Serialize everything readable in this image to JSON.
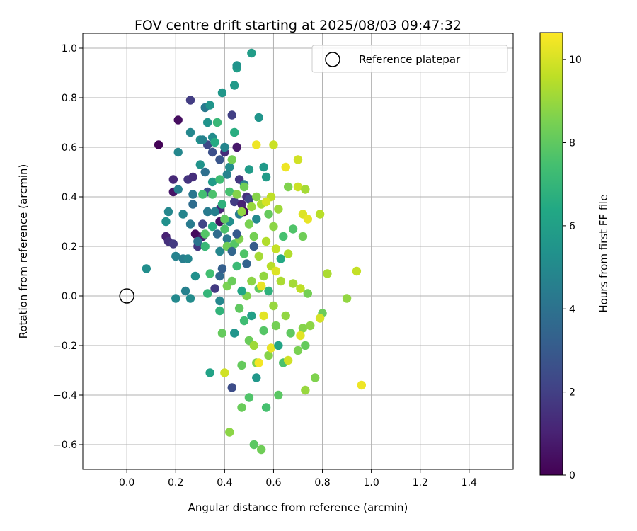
{
  "chart_data": {
    "type": "scatter",
    "title": "FOV centre drift starting at 2025/08/03 09:47:32",
    "xlabel": "Angular distance from reference (arcmin)",
    "ylabel": "Rotation from reference (arcmin)",
    "xlim": [
      -0.18,
      1.58
    ],
    "ylim": [
      -0.7,
      1.06
    ],
    "xticks": [
      0.0,
      0.2,
      0.4,
      0.6,
      0.8,
      1.0,
      1.2,
      1.4
    ],
    "xtick_labels": [
      "0.0",
      "0.2",
      "0.4",
      "0.6",
      "0.8",
      "1.0",
      "1.2",
      "1.4"
    ],
    "yticks": [
      -0.6,
      -0.4,
      -0.2,
      0.0,
      0.2,
      0.4,
      0.6,
      0.8,
      1.0
    ],
    "ytick_labels": [
      "−0.6",
      "−0.4",
      "−0.2",
      "0.0",
      "0.2",
      "0.4",
      "0.6",
      "0.8",
      "1.0"
    ],
    "grid": true,
    "legend": {
      "placement": "top-right",
      "entries": [
        "Reference platepar"
      ]
    },
    "reference_point": {
      "x": 0.0,
      "y": 0.0,
      "marker": "open-circle"
    },
    "colorbar": {
      "label": "Hours from first FF file",
      "colormap": "viridis",
      "range": [
        0,
        10.65
      ],
      "ticks": [
        0,
        2,
        4,
        6,
        8,
        10
      ],
      "tick_labels": [
        "0",
        "2",
        "4",
        "6",
        "8",
        "10"
      ]
    },
    "points": [
      {
        "x": 0.13,
        "y": 0.61,
        "h": 0.1
      },
      {
        "x": 0.16,
        "y": 0.24,
        "h": 1.0
      },
      {
        "x": 0.17,
        "y": 0.22,
        "h": 1.5
      },
      {
        "x": 0.19,
        "y": 0.21,
        "h": 1.8
      },
      {
        "x": 0.19,
        "y": 0.42,
        "h": 0.6
      },
      {
        "x": 0.19,
        "y": 0.47,
        "h": 1.2
      },
      {
        "x": 0.21,
        "y": 0.71,
        "h": 0.4
      },
      {
        "x": 0.25,
        "y": 0.47,
        "h": 1.6
      },
      {
        "x": 0.26,
        "y": 0.79,
        "h": 1.9
      },
      {
        "x": 0.27,
        "y": 0.48,
        "h": 1.4
      },
      {
        "x": 0.28,
        "y": 0.25,
        "h": 0.3
      },
      {
        "x": 0.29,
        "y": 0.2,
        "h": 1.7
      },
      {
        "x": 0.31,
        "y": 0.24,
        "h": 0.8
      },
      {
        "x": 0.31,
        "y": 0.29,
        "h": 2.2
      },
      {
        "x": 0.33,
        "y": 0.61,
        "h": 2.3
      },
      {
        "x": 0.33,
        "y": 0.42,
        "h": 2.5
      },
      {
        "x": 0.35,
        "y": 0.58,
        "h": 2.6
      },
      {
        "x": 0.38,
        "y": 0.3,
        "h": 0.5
      },
      {
        "x": 0.38,
        "y": 0.35,
        "h": 1.1
      },
      {
        "x": 0.38,
        "y": 0.55,
        "h": 2.8
      },
      {
        "x": 0.4,
        "y": 0.58,
        "h": 1.3
      },
      {
        "x": 0.43,
        "y": 0.73,
        "h": 2.0
      },
      {
        "x": 0.44,
        "y": 0.38,
        "h": 1.9
      },
      {
        "x": 0.45,
        "y": 0.6,
        "h": 0.7
      },
      {
        "x": 0.46,
        "y": 0.47,
        "h": 1.7
      },
      {
        "x": 0.47,
        "y": 0.37,
        "h": 1.0
      },
      {
        "x": 0.48,
        "y": 0.34,
        "h": 0.2
      },
      {
        "x": 0.49,
        "y": 0.4,
        "h": 1.5
      },
      {
        "x": 0.5,
        "y": 0.39,
        "h": 2.2
      },
      {
        "x": 0.36,
        "y": 0.03,
        "h": 1.8
      },
      {
        "x": 0.43,
        "y": -0.37,
        "h": 2.5
      },
      {
        "x": 0.08,
        "y": 0.11,
        "h": 5.2
      },
      {
        "x": 0.16,
        "y": 0.3,
        "h": 5.3
      },
      {
        "x": 0.17,
        "y": 0.34,
        "h": 4.9
      },
      {
        "x": 0.2,
        "y": 0.16,
        "h": 4.7
      },
      {
        "x": 0.2,
        "y": -0.01,
        "h": 5.0
      },
      {
        "x": 0.21,
        "y": 0.58,
        "h": 4.9
      },
      {
        "x": 0.21,
        "y": 0.43,
        "h": 4.6
      },
      {
        "x": 0.23,
        "y": 0.33,
        "h": 4.8
      },
      {
        "x": 0.23,
        "y": 0.15,
        "h": 4.5
      },
      {
        "x": 0.24,
        "y": 0.02,
        "h": 4.6
      },
      {
        "x": 0.25,
        "y": 0.15,
        "h": 4.8
      },
      {
        "x": 0.26,
        "y": 0.29,
        "h": 4.4
      },
      {
        "x": 0.26,
        "y": 0.66,
        "h": 4.9
      },
      {
        "x": 0.26,
        "y": -0.01,
        "h": 5.1
      },
      {
        "x": 0.27,
        "y": 0.37,
        "h": 3.8
      },
      {
        "x": 0.27,
        "y": 0.41,
        "h": 4.2
      },
      {
        "x": 0.28,
        "y": 0.08,
        "h": 5.3
      },
      {
        "x": 0.29,
        "y": 0.22,
        "h": 4.1
      },
      {
        "x": 0.3,
        "y": 0.53,
        "h": 5.4
      },
      {
        "x": 0.3,
        "y": 0.63,
        "h": 5.3
      },
      {
        "x": 0.31,
        "y": 0.63,
        "h": 4.7
      },
      {
        "x": 0.32,
        "y": 0.76,
        "h": 4.3
      },
      {
        "x": 0.32,
        "y": 0.5,
        "h": 3.9
      },
      {
        "x": 0.33,
        "y": 0.7,
        "h": 5.4
      },
      {
        "x": 0.33,
        "y": 0.34,
        "h": 4.4
      },
      {
        "x": 0.34,
        "y": 0.77,
        "h": 5.5
      },
      {
        "x": 0.35,
        "y": 0.64,
        "h": 5.1
      },
      {
        "x": 0.35,
        "y": 0.46,
        "h": 5.8
      },
      {
        "x": 0.36,
        "y": 0.34,
        "h": 4.6
      },
      {
        "x": 0.37,
        "y": 0.25,
        "h": 3.7
      },
      {
        "x": 0.38,
        "y": 0.18,
        "h": 4.9
      },
      {
        "x": 0.38,
        "y": 0.08,
        "h": 3.6
      },
      {
        "x": 0.39,
        "y": 0.82,
        "h": 5.6
      },
      {
        "x": 0.4,
        "y": 0.6,
        "h": 4.8
      },
      {
        "x": 0.41,
        "y": 0.49,
        "h": 4.7
      },
      {
        "x": 0.41,
        "y": 0.23,
        "h": 4.3
      },
      {
        "x": 0.42,
        "y": 0.3,
        "h": 5.2
      },
      {
        "x": 0.42,
        "y": 0.52,
        "h": 5.1
      },
      {
        "x": 0.44,
        "y": 0.85,
        "h": 5.7
      },
      {
        "x": 0.45,
        "y": 0.92,
        "h": 5.9
      },
      {
        "x": 0.45,
        "y": 0.93,
        "h": 5.4
      },
      {
        "x": 0.46,
        "y": 0.33,
        "h": 4.5
      },
      {
        "x": 0.48,
        "y": 0.45,
        "h": 4.4
      },
      {
        "x": 0.5,
        "y": 0.51,
        "h": 5.8
      },
      {
        "x": 0.51,
        "y": 0.98,
        "h": 5.9
      },
      {
        "x": 0.53,
        "y": 0.31,
        "h": 5.0
      },
      {
        "x": 0.54,
        "y": 0.72,
        "h": 5.5
      },
      {
        "x": 0.56,
        "y": 0.52,
        "h": 5.7
      },
      {
        "x": 0.57,
        "y": 0.48,
        "h": 5.8
      },
      {
        "x": 0.38,
        "y": -0.02,
        "h": 4.9
      },
      {
        "x": 0.44,
        "y": -0.15,
        "h": 5.5
      },
      {
        "x": 0.53,
        "y": -0.33,
        "h": 5.6
      },
      {
        "x": 0.34,
        "y": -0.31,
        "h": 6.1
      },
      {
        "x": 0.31,
        "y": 0.41,
        "h": 7.4
      },
      {
        "x": 0.32,
        "y": 0.25,
        "h": 7.8
      },
      {
        "x": 0.32,
        "y": 0.2,
        "h": 7.1
      },
      {
        "x": 0.33,
        "y": 0.01,
        "h": 7.0
      },
      {
        "x": 0.34,
        "y": 0.09,
        "h": 7.4
      },
      {
        "x": 0.35,
        "y": 0.41,
        "h": 7.6
      },
      {
        "x": 0.35,
        "y": 0.28,
        "h": 6.6
      },
      {
        "x": 0.36,
        "y": 0.62,
        "h": 6.5
      },
      {
        "x": 0.37,
        "y": 0.7,
        "h": 7.1
      },
      {
        "x": 0.38,
        "y": 0.47,
        "h": 7.3
      },
      {
        "x": 0.38,
        "y": -0.06,
        "h": 6.9
      },
      {
        "x": 0.39,
        "y": 0.37,
        "h": 6.8
      },
      {
        "x": 0.39,
        "y": -0.15,
        "h": 8.1
      },
      {
        "x": 0.4,
        "y": 0.31,
        "h": 8.0
      },
      {
        "x": 0.4,
        "y": 0.27,
        "h": 7.6
      },
      {
        "x": 0.41,
        "y": 0.2,
        "h": 8.3
      },
      {
        "x": 0.41,
        "y": 0.04,
        "h": 8.5
      },
      {
        "x": 0.42,
        "y": 0.42,
        "h": 7.5
      },
      {
        "x": 0.43,
        "y": 0.06,
        "h": 8.2
      },
      {
        "x": 0.43,
        "y": 0.55,
        "h": 8.4
      },
      {
        "x": 0.44,
        "y": 0.21,
        "h": 7.8
      },
      {
        "x": 0.44,
        "y": 0.66,
        "h": 6.6
      },
      {
        "x": 0.45,
        "y": 0.41,
        "h": 8.7
      },
      {
        "x": 0.45,
        "y": 0.12,
        "h": 7.2
      },
      {
        "x": 0.46,
        "y": -0.05,
        "h": 8.0
      },
      {
        "x": 0.46,
        "y": 0.23,
        "h": 8.6
      },
      {
        "x": 0.47,
        "y": 0.34,
        "h": 8.9
      },
      {
        "x": 0.47,
        "y": -0.28,
        "h": 8.1
      },
      {
        "x": 0.48,
        "y": 0.44,
        "h": 8.3
      },
      {
        "x": 0.48,
        "y": 0.17,
        "h": 7.7
      },
      {
        "x": 0.48,
        "y": -0.1,
        "h": 7.3
      },
      {
        "x": 0.49,
        "y": 0.0,
        "h": 8.6
      },
      {
        "x": 0.5,
        "y": 0.29,
        "h": 8.5
      },
      {
        "x": 0.5,
        "y": -0.18,
        "h": 8.2
      },
      {
        "x": 0.51,
        "y": 0.36,
        "h": 9.0
      },
      {
        "x": 0.51,
        "y": 0.06,
        "h": 8.8
      },
      {
        "x": 0.52,
        "y": 0.24,
        "h": 8.4
      },
      {
        "x": 0.52,
        "y": -0.2,
        "h": 9.1
      },
      {
        "x": 0.52,
        "y": -0.6,
        "h": 7.9
      },
      {
        "x": 0.53,
        "y": 0.4,
        "h": 8.7
      },
      {
        "x": 0.53,
        "y": -0.27,
        "h": 8.6
      },
      {
        "x": 0.54,
        "y": 0.16,
        "h": 9.2
      },
      {
        "x": 0.54,
        "y": 0.03,
        "h": 8.0
      },
      {
        "x": 0.55,
        "y": -0.62,
        "h": 8.3
      },
      {
        "x": 0.55,
        "y": 0.37,
        "h": 9.3
      },
      {
        "x": 0.56,
        "y": 0.08,
        "h": 8.9
      },
      {
        "x": 0.56,
        "y": -0.14,
        "h": 7.8
      },
      {
        "x": 0.57,
        "y": 0.22,
        "h": 9.4
      },
      {
        "x": 0.57,
        "y": -0.45,
        "h": 7.5
      },
      {
        "x": 0.58,
        "y": 0.33,
        "h": 8.1
      },
      {
        "x": 0.58,
        "y": -0.24,
        "h": 8.7
      },
      {
        "x": 0.59,
        "y": 0.12,
        "h": 9.5
      },
      {
        "x": 0.59,
        "y": 0.4,
        "h": 9.6
      },
      {
        "x": 0.6,
        "y": -0.04,
        "h": 9.0
      },
      {
        "x": 0.6,
        "y": 0.28,
        "h": 8.8
      },
      {
        "x": 0.61,
        "y": 0.19,
        "h": 9.7
      },
      {
        "x": 0.61,
        "y": -0.12,
        "h": 8.4
      },
      {
        "x": 0.62,
        "y": 0.35,
        "h": 9.1
      },
      {
        "x": 0.62,
        "y": -0.4,
        "h": 7.9
      },
      {
        "x": 0.63,
        "y": 0.06,
        "h": 9.3
      },
      {
        "x": 0.64,
        "y": -0.27,
        "h": 7.6
      },
      {
        "x": 0.64,
        "y": 0.24,
        "h": 7.5
      },
      {
        "x": 0.65,
        "y": -0.08,
        "h": 8.9
      },
      {
        "x": 0.66,
        "y": 0.44,
        "h": 8.6
      },
      {
        "x": 0.66,
        "y": 0.17,
        "h": 9.4
      },
      {
        "x": 0.67,
        "y": -0.15,
        "h": 8.0
      },
      {
        "x": 0.68,
        "y": 0.05,
        "h": 9.2
      },
      {
        "x": 0.68,
        "y": 0.27,
        "h": 7.7
      },
      {
        "x": 0.7,
        "y": -0.22,
        "h": 8.5
      },
      {
        "x": 0.7,
        "y": 0.44,
        "h": 9.8
      },
      {
        "x": 0.71,
        "y": 0.03,
        "h": 9.6
      },
      {
        "x": 0.72,
        "y": -0.13,
        "h": 8.7
      },
      {
        "x": 0.72,
        "y": 0.24,
        "h": 8.3
      },
      {
        "x": 0.73,
        "y": -0.38,
        "h": 9.0
      },
      {
        "x": 0.73,
        "y": 0.43,
        "h": 9.2
      },
      {
        "x": 0.73,
        "y": -0.2,
        "h": 8.1
      },
      {
        "x": 0.74,
        "y": 0.01,
        "h": 8.4
      },
      {
        "x": 0.75,
        "y": -0.12,
        "h": 8.8
      },
      {
        "x": 0.77,
        "y": -0.33,
        "h": 8.6
      },
      {
        "x": 0.79,
        "y": 0.33,
        "h": 9.5
      },
      {
        "x": 0.8,
        "y": -0.07,
        "h": 8.2
      },
      {
        "x": 0.82,
        "y": 0.09,
        "h": 9.3
      },
      {
        "x": 0.9,
        "y": -0.01,
        "h": 8.9
      },
      {
        "x": 0.94,
        "y": 0.1,
        "h": 9.7
      },
      {
        "x": 0.4,
        "y": -0.31,
        "h": 9.9
      },
      {
        "x": 0.42,
        "y": -0.55,
        "h": 8.8
      },
      {
        "x": 0.47,
        "y": -0.45,
        "h": 8.2
      },
      {
        "x": 0.5,
        "y": -0.41,
        "h": 7.7
      },
      {
        "x": 0.53,
        "y": 0.61,
        "h": 10.4
      },
      {
        "x": 0.54,
        "y": -0.27,
        "h": 10.5
      },
      {
        "x": 0.55,
        "y": 0.04,
        "h": 10.3
      },
      {
        "x": 0.56,
        "y": -0.08,
        "h": 10.2
      },
      {
        "x": 0.57,
        "y": 0.38,
        "h": 10.0
      },
      {
        "x": 0.59,
        "y": -0.21,
        "h": 10.3
      },
      {
        "x": 0.6,
        "y": 0.61,
        "h": 9.8
      },
      {
        "x": 0.61,
        "y": 0.1,
        "h": 10.1
      },
      {
        "x": 0.65,
        "y": 0.52,
        "h": 10.4
      },
      {
        "x": 0.66,
        "y": -0.26,
        "h": 9.9
      },
      {
        "x": 0.7,
        "y": 0.55,
        "h": 9.9
      },
      {
        "x": 0.71,
        "y": -0.16,
        "h": 10.2
      },
      {
        "x": 0.72,
        "y": 0.33,
        "h": 10.1
      },
      {
        "x": 0.74,
        "y": 0.31,
        "h": 10.3
      },
      {
        "x": 0.79,
        "y": -0.09,
        "h": 10.0
      },
      {
        "x": 0.96,
        "y": -0.36,
        "h": 10.4
      },
      {
        "x": 0.39,
        "y": 0.11,
        "h": 3.2
      },
      {
        "x": 0.43,
        "y": 0.18,
        "h": 3.5
      },
      {
        "x": 0.45,
        "y": 0.25,
        "h": 3.0
      },
      {
        "x": 0.49,
        "y": 0.13,
        "h": 3.4
      },
      {
        "x": 0.52,
        "y": 0.2,
        "h": 3.1
      },
      {
        "x": 0.47,
        "y": 0.02,
        "h": 6.3
      },
      {
        "x": 0.51,
        "y": -0.08,
        "h": 6.0
      },
      {
        "x": 0.58,
        "y": 0.02,
        "h": 6.8
      },
      {
        "x": 0.63,
        "y": 0.15,
        "h": 6.4
      },
      {
        "x": 0.62,
        "y": -0.2,
        "h": 6.2
      }
    ]
  }
}
